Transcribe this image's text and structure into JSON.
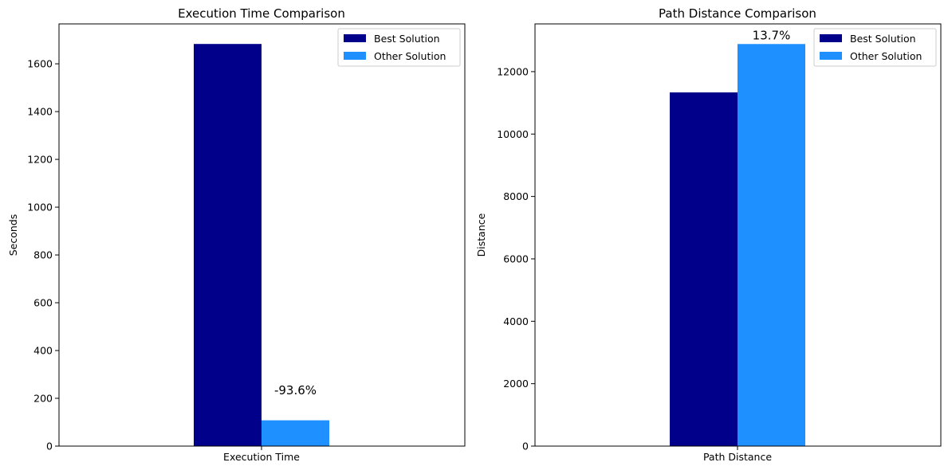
{
  "colors": {
    "best": "#00008B",
    "other": "#1E90FF"
  },
  "chart_data": [
    {
      "type": "bar",
      "title": "Execution Time Comparison",
      "xlabel": "",
      "ylabel": "Seconds",
      "categories": [
        "Execution Time"
      ],
      "series": [
        {
          "name": "Best Solution",
          "values": [
            1683
          ]
        },
        {
          "name": "Other Solution",
          "values": [
            108
          ]
        }
      ],
      "ylim": [
        0,
        1767
      ],
      "yticks": [
        0,
        200,
        400,
        600,
        800,
        1000,
        1200,
        1400,
        1600
      ],
      "annotation": "-93.6%",
      "annotation_value": 196,
      "legend": "top-right",
      "grid": false
    },
    {
      "type": "bar",
      "title": "Path Distance Comparison",
      "xlabel": "",
      "ylabel": "Distance",
      "categories": [
        "Path Distance"
      ],
      "series": [
        {
          "name": "Best Solution",
          "values": [
            11335
          ]
        },
        {
          "name": "Other Solution",
          "values": [
            12885
          ]
        }
      ],
      "ylim": [
        0,
        13530
      ],
      "yticks": [
        0,
        2000,
        4000,
        6000,
        8000,
        10000,
        12000
      ],
      "annotation": "13.7%",
      "annotation_value": 12885,
      "legend": "top-right",
      "grid": false
    }
  ]
}
